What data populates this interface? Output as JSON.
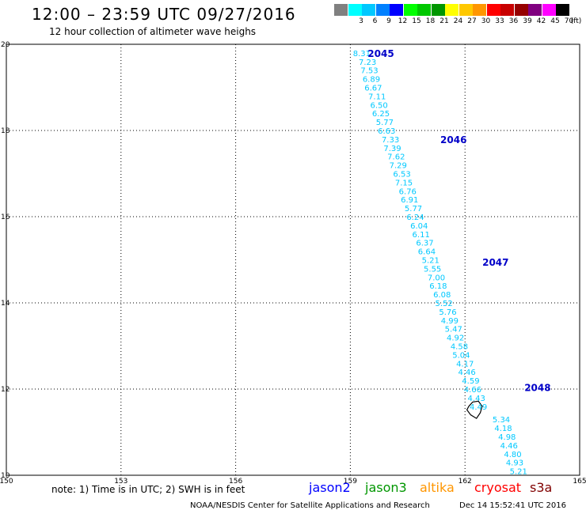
{
  "header": {
    "title": "12:00 – 23:59 UTC 09/27/2016",
    "subtitle": "12 hour collection of altimeter wave heighs"
  },
  "legend": {
    "unit": "(ft)",
    "bins": [
      {
        "color": "#808080",
        "label": ""
      },
      {
        "color": "#00ffff",
        "label": "3"
      },
      {
        "color": "#00c8ff",
        "label": "6"
      },
      {
        "color": "#0080ff",
        "label": "9"
      },
      {
        "color": "#0000ff",
        "label": "12"
      },
      {
        "color": "#00ff00",
        "label": "15"
      },
      {
        "color": "#00c800",
        "label": "18"
      },
      {
        "color": "#009600",
        "label": "21"
      },
      {
        "color": "#ffff00",
        "label": "24"
      },
      {
        "color": "#ffc800",
        "label": "27"
      },
      {
        "color": "#ff9600",
        "label": "30"
      },
      {
        "color": "#ff0000",
        "label": "33"
      },
      {
        "color": "#c80000",
        "label": "36"
      },
      {
        "color": "#960000",
        "label": "39"
      },
      {
        "color": "#800080",
        "label": "42"
      },
      {
        "color": "#ff00ff",
        "label": "45"
      },
      {
        "color": "#000000",
        "label": "70"
      }
    ]
  },
  "map": {
    "lon_range": [
      150,
      165
    ],
    "lat_range": [
      10,
      20
    ],
    "lon_ticks": [
      "150",
      "153",
      "156",
      "159",
      "162",
      "165"
    ],
    "lat_ticks": [
      "20",
      "18",
      "16",
      "14",
      "12",
      "10"
    ],
    "colors": {
      "swh_value": "#00c8ff",
      "time_label": "#0000c8",
      "grid": "#000000"
    },
    "pass_times": [
      {
        "label": "2045",
        "lon": 159.8,
        "lat": 19.8
      },
      {
        "label": "2046",
        "lon": 161.7,
        "lat": 17.8
      },
      {
        "label": "2047",
        "lon": 162.8,
        "lat": 14.95
      },
      {
        "label": "2048",
        "lon": 163.9,
        "lat": 12.05
      }
    ],
    "swh_points": [
      {
        "lon": 159.3,
        "lat": 19.8,
        "value": "8.31"
      },
      {
        "lon": 159.45,
        "lat": 19.6,
        "value": "7.23"
      },
      {
        "lon": 159.5,
        "lat": 19.4,
        "value": "7.53"
      },
      {
        "lon": 159.55,
        "lat": 19.2,
        "value": "6.89"
      },
      {
        "lon": 159.6,
        "lat": 19.0,
        "value": "6.67"
      },
      {
        "lon": 159.7,
        "lat": 18.8,
        "value": "7.11"
      },
      {
        "lon": 159.75,
        "lat": 18.6,
        "value": "6.50"
      },
      {
        "lon": 159.8,
        "lat": 18.4,
        "value": "6.25"
      },
      {
        "lon": 159.9,
        "lat": 18.2,
        "value": "5.77"
      },
      {
        "lon": 159.95,
        "lat": 18.0,
        "value": "6.63"
      },
      {
        "lon": 160.05,
        "lat": 17.8,
        "value": "7.33"
      },
      {
        "lon": 160.1,
        "lat": 17.6,
        "value": "7.39"
      },
      {
        "lon": 160.2,
        "lat": 17.4,
        "value": "7.62"
      },
      {
        "lon": 160.25,
        "lat": 17.2,
        "value": "7.29"
      },
      {
        "lon": 160.35,
        "lat": 17.0,
        "value": "6.53"
      },
      {
        "lon": 160.4,
        "lat": 16.8,
        "value": "7.15"
      },
      {
        "lon": 160.5,
        "lat": 16.6,
        "value": "6.76"
      },
      {
        "lon": 160.55,
        "lat": 16.4,
        "value": "6.91"
      },
      {
        "lon": 160.65,
        "lat": 16.2,
        "value": "5.77"
      },
      {
        "lon": 160.7,
        "lat": 16.0,
        "value": "6.24"
      },
      {
        "lon": 160.8,
        "lat": 15.8,
        "value": "6.04"
      },
      {
        "lon": 160.85,
        "lat": 15.6,
        "value": "6.11"
      },
      {
        "lon": 160.95,
        "lat": 15.4,
        "value": "6.37"
      },
      {
        "lon": 161.0,
        "lat": 15.2,
        "value": "6.64"
      },
      {
        "lon": 161.1,
        "lat": 15.0,
        "value": "5.21"
      },
      {
        "lon": 161.15,
        "lat": 14.8,
        "value": "5.55"
      },
      {
        "lon": 161.25,
        "lat": 14.6,
        "value": "7.00"
      },
      {
        "lon": 161.3,
        "lat": 14.4,
        "value": "6.18"
      },
      {
        "lon": 161.4,
        "lat": 14.2,
        "value": "6.08"
      },
      {
        "lon": 161.45,
        "lat": 14.0,
        "value": "5.52"
      },
      {
        "lon": 161.55,
        "lat": 13.8,
        "value": "5.76"
      },
      {
        "lon": 161.6,
        "lat": 13.6,
        "value": "4.99"
      },
      {
        "lon": 161.7,
        "lat": 13.4,
        "value": "5.47"
      },
      {
        "lon": 161.75,
        "lat": 13.2,
        "value": "4.92"
      },
      {
        "lon": 161.85,
        "lat": 13.0,
        "value": "4.58"
      },
      {
        "lon": 161.9,
        "lat": 12.8,
        "value": "5.04"
      },
      {
        "lon": 162.0,
        "lat": 12.6,
        "value": "4.17"
      },
      {
        "lon": 162.05,
        "lat": 12.4,
        "value": "4.46"
      },
      {
        "lon": 162.15,
        "lat": 12.2,
        "value": "4.59"
      },
      {
        "lon": 162.2,
        "lat": 12.0,
        "value": "4.66"
      },
      {
        "lon": 162.3,
        "lat": 11.8,
        "value": "4.43"
      },
      {
        "lon": 162.35,
        "lat": 11.6,
        "value": "4.49"
      },
      {
        "lon": 162.95,
        "lat": 11.3,
        "value": "5.34"
      },
      {
        "lon": 163.0,
        "lat": 11.1,
        "value": "4.18"
      },
      {
        "lon": 163.1,
        "lat": 10.9,
        "value": "4.98"
      },
      {
        "lon": 163.15,
        "lat": 10.7,
        "value": "4.46"
      },
      {
        "lon": 163.25,
        "lat": 10.5,
        "value": "4.80"
      },
      {
        "lon": 163.3,
        "lat": 10.3,
        "value": "4.93"
      },
      {
        "lon": 163.4,
        "lat": 10.1,
        "value": "5.21"
      }
    ],
    "island_outline": [
      [
        162.1,
        11.6
      ],
      [
        162.2,
        11.7
      ],
      [
        162.35,
        11.72
      ],
      [
        162.45,
        11.6
      ],
      [
        162.4,
        11.45
      ],
      [
        162.3,
        11.32
      ],
      [
        162.15,
        11.4
      ],
      [
        162.05,
        11.52
      ]
    ]
  },
  "footer": {
    "note": "note:  1) Time is in UTC;  2) SWH is in feet",
    "satellites": [
      {
        "name": "jason2",
        "color": "#0000ff"
      },
      {
        "name": "jason3",
        "color": "#009600"
      },
      {
        "name": "altika",
        "color": "#ff9600"
      },
      {
        "name": "cryosat",
        "color": "#ff0000"
      },
      {
        "name": "s3a",
        "color": "#800000"
      }
    ],
    "credit": "NOAA/NESDIS Center for Satellite Applications and Research",
    "timestamp": "Dec 14 15:52:41 UTC 2016"
  }
}
